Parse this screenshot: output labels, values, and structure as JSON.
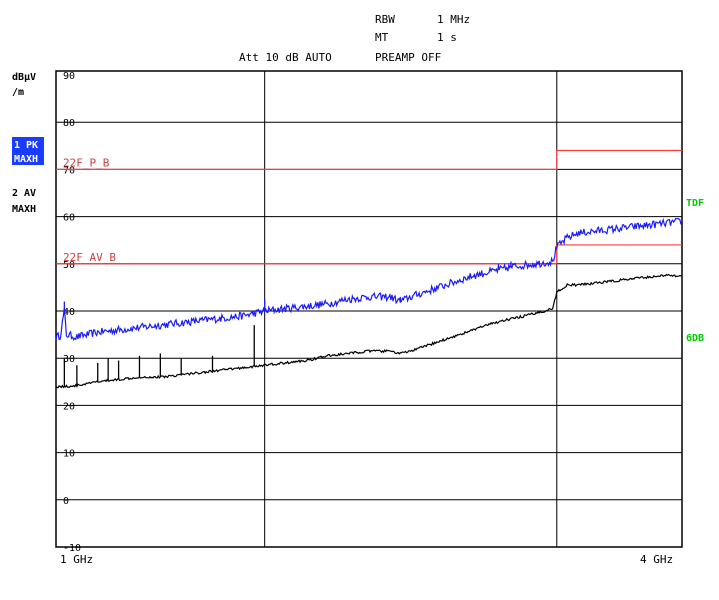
{
  "header": {
    "rbw_label": "RBW",
    "rbw_value": "1 MHz",
    "mt_label": "MT",
    "mt_value": "1 s",
    "att_line": "Att 10 dB AUTO",
    "preamp": "PREAMP OFF"
  },
  "left_panel": {
    "unit_line1": "dBµV",
    "unit_line2": "/m",
    "trace1_line1": "1 PK",
    "trace1_line2": "MAXH",
    "trace2_line1": "2 AV",
    "trace2_line2": "MAXH"
  },
  "right_panel": {
    "tdf": "TDF",
    "sixdb": "6DB"
  },
  "colors": {
    "peak": "#1a1aff",
    "average": "#000000",
    "limit": "#ff3b3b",
    "limit_text": "#d04040",
    "badge_bg": "#1a3cff",
    "badge_text": "#ffffff",
    "tdf_text": "#00cc00"
  },
  "chart_data": {
    "type": "line",
    "xlabel_start": "1 GHz",
    "xlabel_end": "4 GHz",
    "x_range_ghz": [
      1,
      4
    ],
    "ylim": [
      -20,
      90
    ],
    "y_ticks": [
      90,
      80,
      70,
      60,
      50,
      40,
      30,
      20,
      10,
      0,
      -10
    ],
    "grid": true,
    "limits": [
      {
        "name": "22F_P_B",
        "segments": [
          [
            1,
            70,
            3.4,
            70
          ],
          [
            3.4,
            74,
            4,
            74
          ]
        ]
      },
      {
        "name": "22F_AV_B",
        "segments": [
          [
            1,
            50,
            3.4,
            50
          ],
          [
            3.4,
            54,
            4,
            54
          ]
        ]
      }
    ],
    "series": [
      {
        "trace": "1 PK",
        "points": [
          [
            1.0,
            34.5
          ],
          [
            1.02,
            34.8
          ],
          [
            1.04,
            40
          ],
          [
            1.05,
            35
          ],
          [
            1.1,
            34.5
          ],
          [
            1.2,
            35.5
          ],
          [
            1.3,
            36
          ],
          [
            1.4,
            36.5
          ],
          [
            1.5,
            37
          ],
          [
            1.6,
            37.5
          ],
          [
            1.7,
            38
          ],
          [
            1.8,
            38.5
          ],
          [
            1.9,
            39
          ],
          [
            2.0,
            40
          ],
          [
            2.1,
            40.5
          ],
          [
            2.2,
            41
          ],
          [
            2.3,
            41.5
          ],
          [
            2.4,
            42.5
          ],
          [
            2.5,
            43
          ],
          [
            2.55,
            43
          ],
          [
            2.6,
            43
          ],
          [
            2.65,
            42
          ],
          [
            2.7,
            43
          ],
          [
            2.8,
            44.5
          ],
          [
            2.9,
            46
          ],
          [
            3.0,
            47.5
          ],
          [
            3.1,
            48.5
          ],
          [
            3.2,
            49.5
          ],
          [
            3.3,
            50
          ],
          [
            3.38,
            50.5
          ],
          [
            3.4,
            53.5
          ],
          [
            3.45,
            55.5
          ],
          [
            3.5,
            56.5
          ],
          [
            3.6,
            57
          ],
          [
            3.7,
            57.5
          ],
          [
            3.8,
            58
          ],
          [
            3.9,
            58.5
          ],
          [
            4.0,
            59
          ]
        ],
        "spikes": [
          [
            1.04,
            42
          ],
          [
            2.0,
            42.5
          ],
          [
            2.65,
            43
          ],
          [
            3.12,
            50
          ],
          [
            3.18,
            50.5
          ]
        ]
      },
      {
        "trace": "2 AV",
        "points": [
          [
            1.0,
            24
          ],
          [
            1.05,
            24
          ],
          [
            1.1,
            24.2
          ],
          [
            1.2,
            25
          ],
          [
            1.3,
            25.5
          ],
          [
            1.4,
            26
          ],
          [
            1.5,
            26
          ],
          [
            1.6,
            26.5
          ],
          [
            1.7,
            27
          ],
          [
            1.8,
            27.5
          ],
          [
            1.9,
            28
          ],
          [
            2.0,
            28.5
          ],
          [
            2.1,
            29
          ],
          [
            2.2,
            29.5
          ],
          [
            2.3,
            30.5
          ],
          [
            2.4,
            31
          ],
          [
            2.5,
            31.5
          ],
          [
            2.6,
            31.5
          ],
          [
            2.65,
            31
          ],
          [
            2.7,
            31.5
          ],
          [
            2.8,
            33
          ],
          [
            2.9,
            34.5
          ],
          [
            3.0,
            36
          ],
          [
            3.1,
            37.5
          ],
          [
            3.2,
            38.5
          ],
          [
            3.3,
            39.5
          ],
          [
            3.38,
            40.5
          ],
          [
            3.4,
            44
          ],
          [
            3.45,
            45.5
          ],
          [
            3.5,
            45.5
          ],
          [
            3.6,
            46
          ],
          [
            3.7,
            46.5
          ],
          [
            3.8,
            47
          ],
          [
            3.9,
            47.5
          ],
          [
            4.0,
            47.5
          ]
        ],
        "spikes": [
          [
            1.04,
            30
          ],
          [
            1.1,
            28.5
          ],
          [
            1.2,
            29
          ],
          [
            1.25,
            30
          ],
          [
            1.3,
            29.5
          ],
          [
            1.4,
            30.5
          ],
          [
            1.5,
            31
          ],
          [
            1.6,
            30
          ],
          [
            1.75,
            30.5
          ],
          [
            1.95,
            37
          ]
        ]
      }
    ]
  }
}
